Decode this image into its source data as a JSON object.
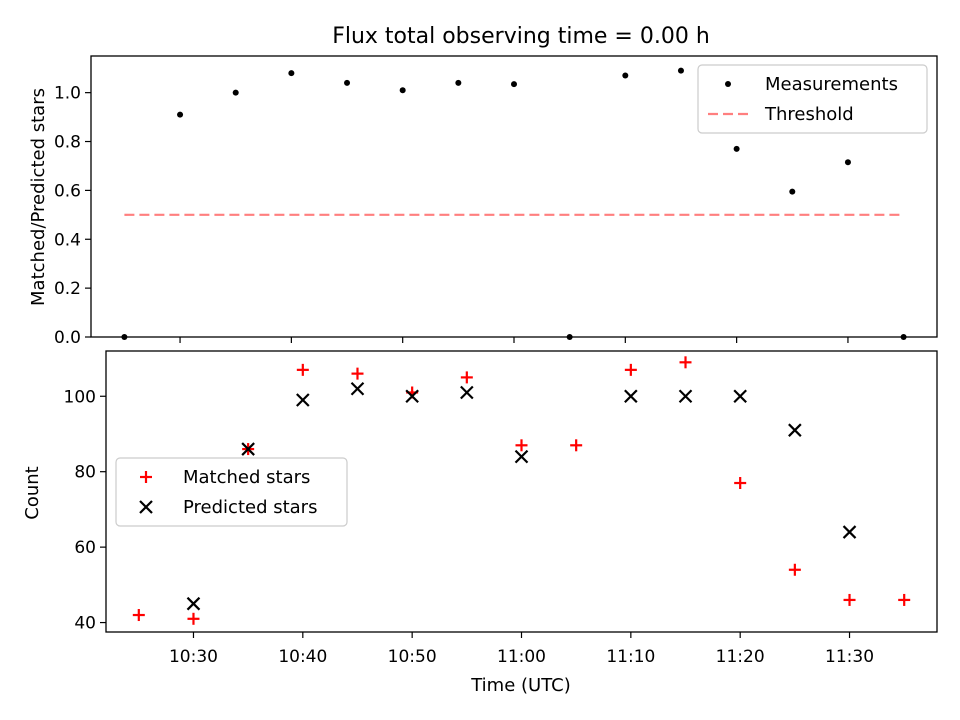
{
  "chart_data": [
    {
      "type": "scatter",
      "title": "Flux total observing time = 0.00 h",
      "xlabel": "",
      "ylabel": "Matched/Predicted stars",
      "ylim": [
        0,
        1.15
      ],
      "yticks": [
        "0.0",
        "0.2",
        "0.4",
        "0.6",
        "0.8",
        "1.0"
      ],
      "xlim": [
        "10:22",
        "11:38"
      ],
      "legend": "top-right",
      "series": [
        {
          "name": "Measurements",
          "style": "dot",
          "color": "#000000",
          "points": [
            {
              "x": "10:25",
              "y": 0.0
            },
            {
              "x": "10:30",
              "y": 0.91
            },
            {
              "x": "10:35",
              "y": 1.0
            },
            {
              "x": "10:40",
              "y": 1.08
            },
            {
              "x": "10:45",
              "y": 1.04
            },
            {
              "x": "10:50",
              "y": 1.01
            },
            {
              "x": "10:55",
              "y": 1.04
            },
            {
              "x": "11:00",
              "y": 1.035
            },
            {
              "x": "11:05",
              "y": 0.0
            },
            {
              "x": "11:10",
              "y": 1.07
            },
            {
              "x": "11:15",
              "y": 1.09
            },
            {
              "x": "11:20",
              "y": 0.77
            },
            {
              "x": "11:25",
              "y": 0.595
            },
            {
              "x": "11:30",
              "y": 0.715
            },
            {
              "x": "11:35",
              "y": 0.0
            }
          ]
        },
        {
          "name": "Threshold",
          "style": "dashed-line",
          "color": "#ff7f7f",
          "points": [
            {
              "x": "10:25",
              "y": 0.5
            },
            {
              "x": "11:35",
              "y": 0.5
            }
          ]
        }
      ]
    },
    {
      "type": "scatter",
      "title": "",
      "xlabel": "Time (UTC)",
      "ylabel": "Count",
      "ylim": [
        37.5,
        112
      ],
      "yticks": [
        "40",
        "60",
        "80",
        "100"
      ],
      "xlim": [
        "10:22",
        "11:38"
      ],
      "xticks": [
        "10:30",
        "10:40",
        "10:50",
        "11:00",
        "11:10",
        "11:20",
        "11:30"
      ],
      "legend": "center-left",
      "series": [
        {
          "name": "Matched stars",
          "style": "plus",
          "color": "#ff0000",
          "points": [
            {
              "x": "10:25",
              "y": 42
            },
            {
              "x": "10:30",
              "y": 41
            },
            {
              "x": "10:35",
              "y": 86
            },
            {
              "x": "10:40",
              "y": 107
            },
            {
              "x": "10:45",
              "y": 106
            },
            {
              "x": "10:50",
              "y": 101
            },
            {
              "x": "10:55",
              "y": 105
            },
            {
              "x": "11:00",
              "y": 87
            },
            {
              "x": "11:05",
              "y": 87
            },
            {
              "x": "11:10",
              "y": 107
            },
            {
              "x": "11:15",
              "y": 109
            },
            {
              "x": "11:20",
              "y": 77
            },
            {
              "x": "11:25",
              "y": 54
            },
            {
              "x": "11:30",
              "y": 46
            },
            {
              "x": "11:35",
              "y": 46
            }
          ]
        },
        {
          "name": "Predicted stars",
          "style": "cross",
          "color": "#000000",
          "points": [
            {
              "x": "10:30",
              "y": 45
            },
            {
              "x": "10:35",
              "y": 86
            },
            {
              "x": "10:40",
              "y": 99
            },
            {
              "x": "10:45",
              "y": 102
            },
            {
              "x": "10:50",
              "y": 100
            },
            {
              "x": "10:55",
              "y": 101
            },
            {
              "x": "11:00",
              "y": 84
            },
            {
              "x": "11:10",
              "y": 100
            },
            {
              "x": "11:15",
              "y": 100
            },
            {
              "x": "11:20",
              "y": 100
            },
            {
              "x": "11:25",
              "y": 91
            },
            {
              "x": "11:30",
              "y": 64
            }
          ]
        }
      ]
    }
  ]
}
